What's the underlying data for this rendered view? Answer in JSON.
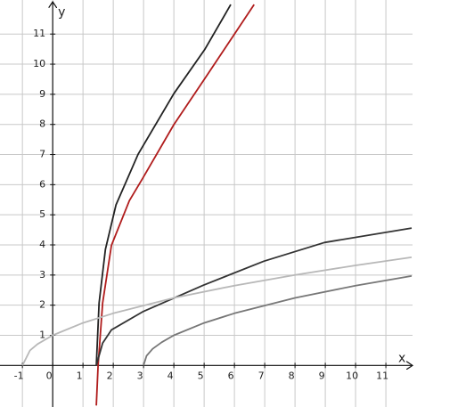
{
  "chart_data": {
    "type": "line",
    "x_label": "x",
    "y_label": "y",
    "xlim": [
      -1.74,
      11.88
    ],
    "ylim": [
      -1.38,
      12.13
    ],
    "xticks": [
      -1,
      0,
      1,
      2,
      3,
      4,
      5,
      6,
      7,
      8,
      9,
      10,
      11
    ],
    "yticks": [
      1,
      2,
      3,
      4,
      5,
      6,
      7,
      8,
      9,
      10,
      11
    ],
    "grid": true,
    "series": [
      {
        "color": "#222222",
        "x": [
          1.44,
          1.53,
          1.74,
          2.09,
          2.82,
          4.0,
          5.03,
          5.88
        ],
        "values": [
          0,
          2.07,
          3.85,
          5.33,
          7.01,
          9.02,
          10.5,
          11.98
        ]
      },
      {
        "color": "#b01c1c",
        "x": [
          1.44,
          1.5,
          1.65,
          1.94,
          2.53,
          2.97,
          4.0,
          5.03,
          5.97,
          6.65
        ],
        "values": [
          -1.33,
          0,
          2.07,
          3.99,
          5.47,
          6.21,
          7.99,
          9.53,
          10.95,
          11.98
        ]
      },
      {
        "color": "#333333",
        "x": [
          1.44,
          1.65,
          1.94,
          2.97,
          4.97,
          6.97,
          8.97,
          11.85
        ],
        "values": [
          0,
          0.74,
          1.18,
          1.78,
          2.66,
          3.46,
          4.08,
          4.56
        ]
      },
      {
        "color": "#b8b8b8",
        "x": [
          -1,
          -0.75,
          -0.5,
          0,
          1,
          2,
          4,
          6,
          8,
          10,
          11.85
        ],
        "values": [
          0,
          0.5,
          0.71,
          1,
          1.41,
          1.73,
          2.24,
          2.65,
          3,
          3.32,
          3.59
        ]
      },
      {
        "color": "#777777",
        "x": [
          3,
          3.1,
          3.3,
          3.6,
          4,
          5,
          6,
          8,
          10,
          11.85
        ],
        "values": [
          0,
          0.32,
          0.55,
          0.77,
          1,
          1.41,
          1.73,
          2.24,
          2.65,
          2.97
        ]
      }
    ]
  }
}
